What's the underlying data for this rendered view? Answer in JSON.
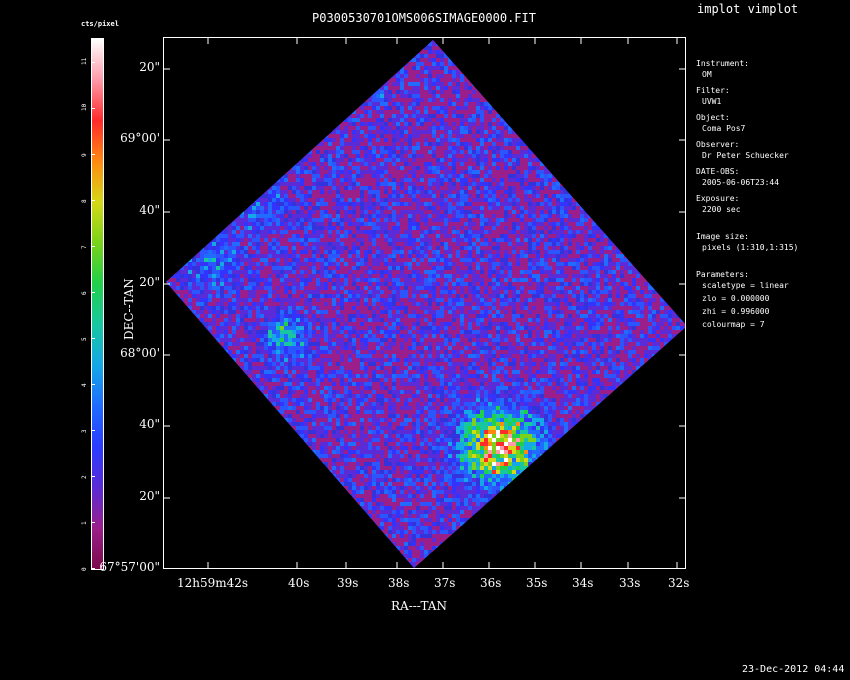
{
  "header": {
    "title": "P0300530701OMS006SIMAGE0000.FIT",
    "app_name": "implot vimplot",
    "colorbar_unit": "cts/pixel"
  },
  "colorbar": {
    "ticks": [
      "0",
      "1",
      "2",
      "3",
      "4",
      "5",
      "6",
      "7",
      "8",
      "9",
      "10",
      "11"
    ],
    "colors": [
      "#7a0a4a",
      "#9a1f8a",
      "#5a2bd6",
      "#2a3cff",
      "#1f6cff",
      "#15a8e6",
      "#18c7a0",
      "#21d04a",
      "#7ad21a",
      "#d6d817",
      "#ff8a12",
      "#ff2a2a",
      "#ff9aa8",
      "#ffffff"
    ]
  },
  "axes": {
    "ylabel": "DEC--TAN",
    "xlabel": "RA---TAN",
    "y_ticks": [
      {
        "label": "20\"",
        "dec_arcsec": 80
      },
      {
        "label": "69°00'",
        "dec_arcsec": 60
      },
      {
        "label": "40\"",
        "dec_arcsec": 40
      },
      {
        "label": "20\"",
        "dec_arcsec": 20
      },
      {
        "label": "68°00'",
        "dec_arcsec": 0
      },
      {
        "label": "40\"",
        "dec_arcsec": -20
      },
      {
        "label": "20\"",
        "dec_arcsec": -40
      },
      {
        "label": "67°57'00\"",
        "dec_arcsec": -60
      }
    ],
    "x_ticks": [
      {
        "label": "12h59m42s",
        "ra_s": 42
      },
      {
        "label": "40s",
        "ra_s": 40
      },
      {
        "label": "39s",
        "ra_s": 39
      },
      {
        "label": "38s",
        "ra_s": 38
      },
      {
        "label": "37s",
        "ra_s": 37
      },
      {
        "label": "36s",
        "ra_s": 36
      },
      {
        "label": "35s",
        "ra_s": 35
      },
      {
        "label": "34s",
        "ra_s": 34
      },
      {
        "label": "33s",
        "ra_s": 33
      },
      {
        "label": "32s",
        "ra_s": 32
      }
    ]
  },
  "info": {
    "instrument_label": "Instrument:",
    "instrument_value": "OM",
    "filter_label": "Filter:",
    "filter_value": "UVW1",
    "object_label": "Object:",
    "object_value": "Coma Pos7",
    "observer_label": "Observer:",
    "observer_value": "Dr Peter Schuecker",
    "date_label": "DATE-OBS:",
    "date_value": "2005-06-06T23:44",
    "exposure_label": "Exposure:",
    "exposure_value": "2200 sec",
    "image_size_label": "Image size:",
    "image_size_value": "pixels (1:310,1:315)",
    "parameters_label": "Parameters:",
    "param_scaletype": "scaletype = linear",
    "param_zlo": "zlo = 0.000000",
    "param_zhi": "zhi = 0.996000",
    "param_colourmap": "colourmap = 7"
  },
  "footer": {
    "timestamp": "23-Dec-2012 04:44"
  }
}
